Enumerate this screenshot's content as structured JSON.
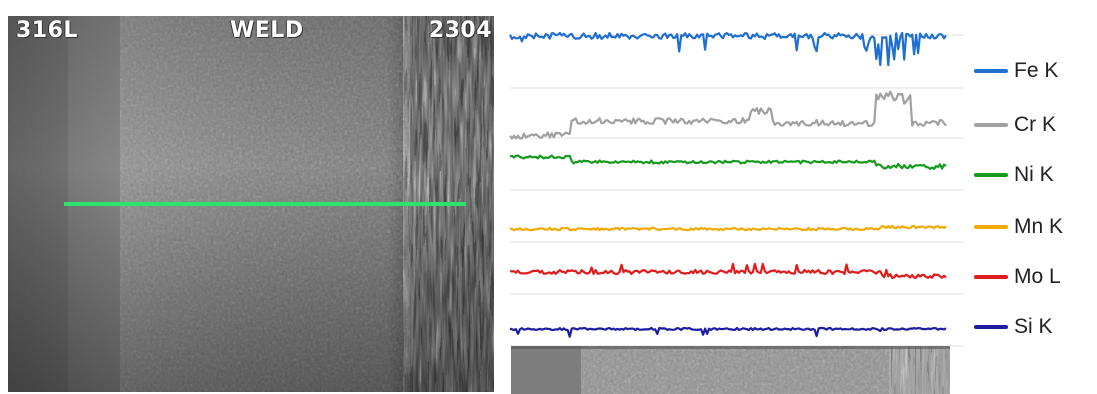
{
  "micrograph": {
    "labels": {
      "left": "316L",
      "center": "WELD",
      "right": "2304"
    },
    "scan_line_color": "#2ee36b"
  },
  "chart_data": {
    "type": "line",
    "title": "",
    "xlabel": "",
    "ylabel": "",
    "series": [
      {
        "name": "Fe K",
        "color": "#1f6fd1"
      },
      {
        "name": "Cr K",
        "color": "#a0a0a0"
      },
      {
        "name": "Ni K",
        "color": "#149a1c"
      },
      {
        "name": "Mn K",
        "color": "#f2a900"
      },
      {
        "name": "Mo L",
        "color": "#e01b1b"
      },
      {
        "name": "Si K",
        "color": "#1c1ca0"
      }
    ],
    "grid": true,
    "legend_position": "right"
  }
}
